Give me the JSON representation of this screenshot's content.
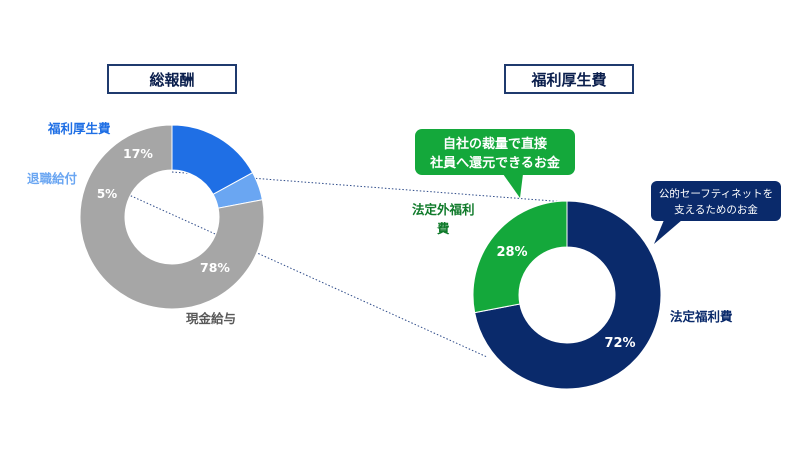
{
  "titles": {
    "left": "総報酬",
    "right": "福利厚生費"
  },
  "callouts": {
    "green_line1": "自社の裁量で直接",
    "green_line2": "社員へ還元できるお金",
    "navy_line1": "公的セーフティネットを",
    "navy_line2": "支えるためのお金"
  },
  "colors": {
    "gray": "#a6a6a6",
    "blue": "#1f6fe5",
    "lightblue": "#6aa6f2",
    "navy": "#0a2a6b",
    "green": "#14a83b",
    "title_border": "#1f3a6e"
  },
  "chart_data": [
    {
      "type": "pie",
      "title": "総報酬",
      "series": [
        {
          "name": "福利厚生費",
          "value": 17,
          "label": "17%",
          "color": "#1f6fe5"
        },
        {
          "name": "退職給付",
          "value": 5,
          "label": "5%",
          "color": "#6aa6f2"
        },
        {
          "name": "現金給与",
          "value": 78,
          "label": "78%",
          "color": "#a6a6a6"
        }
      ]
    },
    {
      "type": "pie",
      "title": "福利厚生費",
      "series": [
        {
          "name": "法定福利費",
          "value": 72,
          "label": "72%",
          "color": "#0a2a6b"
        },
        {
          "name": "法定外福利費",
          "value": 28,
          "label": "28%",
          "color": "#14a83b"
        }
      ]
    }
  ]
}
